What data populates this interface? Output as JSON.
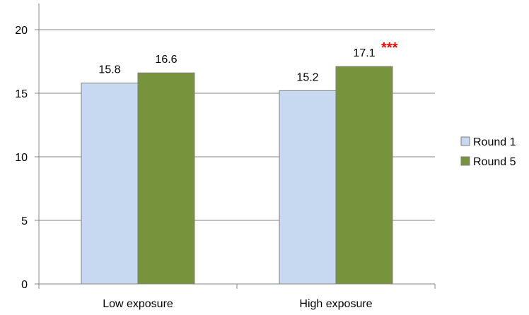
{
  "chart_data": {
    "type": "bar",
    "title": "",
    "xlabel": "",
    "ylabel": "",
    "ylim": [
      0,
      20
    ],
    "yticks": [
      0,
      5,
      10,
      15,
      20
    ],
    "grid": true,
    "legend_position": "right",
    "categories": [
      "Low exposure",
      "High exposure"
    ],
    "series": [
      {
        "name": "Round 1",
        "values": [
          15.8,
          15.2
        ],
        "labels": [
          "15.8",
          "15.2"
        ],
        "color": "#c6d9f1"
      },
      {
        "name": "Round 5",
        "values": [
          16.6,
          17.1
        ],
        "labels": [
          "16.6",
          "17.1"
        ],
        "color": "#77933c"
      }
    ],
    "annotations": [
      {
        "text": "***",
        "category_index": 1,
        "series_index": 1,
        "color": "#ff0000"
      }
    ]
  }
}
